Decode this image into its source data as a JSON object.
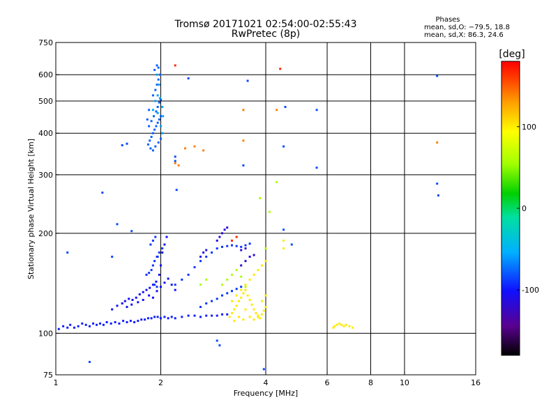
{
  "chart_data": {
    "type": "scatter",
    "title": "Tromsø 20171021 02:54:00-02:55:43",
    "subtitle": "RwPretec (8p)",
    "xlabel": "Frequency [MHz]",
    "ylabel": "Stationary phase Virtual Height [km]",
    "x_scale": "log",
    "y_scale": "log",
    "xlim": [
      1,
      16
    ],
    "ylim": [
      75,
      750
    ],
    "x_ticks": [
      1,
      2,
      4,
      6,
      8,
      10,
      16
    ],
    "y_ticks": [
      75,
      100,
      200,
      300,
      400,
      500,
      600,
      750
    ],
    "x_grid": [
      2,
      4,
      6,
      8,
      10
    ],
    "y_grid": [
      100,
      200,
      300,
      400,
      500,
      600
    ],
    "grid": true,
    "legend": {
      "title": "Phases",
      "lines": [
        "mean, sd,O: −79.5, 18.8",
        "mean, sd,X:  86.3, 24.6"
      ],
      "placement": "top-right"
    },
    "colorbar": {
      "label": "[deg]",
      "range": [
        -180,
        180
      ],
      "ticks": [
        100,
        0,
        -100
      ],
      "colors": [
        "#000000",
        "#5a0090",
        "#1010ff",
        "#00b0ff",
        "#00e0a0",
        "#00d000",
        "#a0ff00",
        "#ffff00",
        "#ffa000",
        "#ff4000",
        "#ff0000"
      ]
    },
    "series": [
      {
        "phase": -105,
        "points": [
          [
            1.02,
            103
          ],
          [
            1.05,
            105
          ],
          [
            1.08,
            104
          ],
          [
            1.1,
            106
          ],
          [
            1.13,
            104
          ],
          [
            1.16,
            105
          ],
          [
            1.19,
            107
          ],
          [
            1.22,
            106
          ],
          [
            1.25,
            105
          ],
          [
            1.28,
            107
          ],
          [
            1.31,
            106
          ],
          [
            1.34,
            107
          ],
          [
            1.37,
            106
          ],
          [
            1.4,
            108
          ],
          [
            1.44,
            107
          ],
          [
            1.48,
            108
          ],
          [
            1.52,
            107
          ],
          [
            1.56,
            109
          ],
          [
            1.6,
            108
          ],
          [
            1.64,
            109
          ],
          [
            1.68,
            108
          ],
          [
            1.72,
            109
          ],
          [
            1.76,
            110
          ],
          [
            1.8,
            110
          ],
          [
            1.84,
            111
          ],
          [
            1.88,
            111
          ],
          [
            1.92,
            112
          ],
          [
            1.96,
            112
          ],
          [
            2.0,
            111
          ],
          [
            2.05,
            112
          ],
          [
            2.1,
            111
          ],
          [
            2.15,
            112
          ],
          [
            2.2,
            111
          ],
          [
            2.3,
            112
          ],
          [
            2.4,
            113
          ],
          [
            2.5,
            113
          ],
          [
            2.6,
            112
          ],
          [
            2.7,
            113
          ],
          [
            2.8,
            113
          ],
          [
            2.9,
            113
          ],
          [
            3.0,
            114
          ],
          [
            3.1,
            114
          ]
        ]
      },
      {
        "phase": -110,
        "points": [
          [
            1.45,
            118
          ],
          [
            1.5,
            121
          ],
          [
            1.55,
            123
          ],
          [
            1.58,
            125
          ],
          [
            1.62,
            127
          ],
          [
            1.66,
            126
          ],
          [
            1.7,
            128
          ],
          [
            1.74,
            131
          ],
          [
            1.78,
            133
          ],
          [
            1.82,
            135
          ],
          [
            1.86,
            137
          ],
          [
            1.9,
            140
          ],
          [
            1.94,
            143
          ],
          [
            1.98,
            150
          ],
          [
            2.0,
            160
          ],
          [
            2.02,
            175
          ],
          [
            2.05,
            185
          ],
          [
            2.08,
            195
          ],
          [
            1.6,
            120
          ],
          [
            1.65,
            122
          ],
          [
            1.72,
            124
          ],
          [
            1.78,
            126
          ],
          [
            1.85,
            130
          ],
          [
            1.9,
            128
          ],
          [
            1.95,
            134
          ],
          [
            2.0,
            138
          ],
          [
            2.05,
            142
          ],
          [
            2.1,
            146
          ],
          [
            2.15,
            140
          ],
          [
            2.2,
            135
          ]
        ]
      },
      {
        "phase": -100,
        "points": [
          [
            1.82,
            150
          ],
          [
            1.85,
            152
          ],
          [
            1.88,
            155
          ],
          [
            1.9,
            160
          ],
          [
            1.92,
            165
          ],
          [
            1.95,
            170
          ],
          [
            1.98,
            175
          ],
          [
            2.02,
            180
          ],
          [
            1.87,
            185
          ],
          [
            1.9,
            190
          ],
          [
            1.93,
            195
          ],
          [
            1.96,
            170
          ],
          [
            1.92,
            140
          ],
          [
            1.95,
            138
          ],
          [
            2.2,
            140
          ],
          [
            2.3,
            145
          ],
          [
            2.4,
            150
          ],
          [
            2.5,
            158
          ],
          [
            2.6,
            165
          ],
          [
            2.7,
            170
          ],
          [
            2.8,
            175
          ],
          [
            2.9,
            180
          ],
          [
            3.0,
            182
          ],
          [
            3.1,
            183
          ],
          [
            3.2,
            184
          ],
          [
            3.3,
            183
          ],
          [
            3.4,
            182
          ],
          [
            3.5,
            184
          ],
          [
            3.6,
            186
          ],
          [
            2.6,
            120
          ],
          [
            2.7,
            123
          ],
          [
            2.8,
            125
          ],
          [
            2.9,
            127
          ],
          [
            3.0,
            130
          ],
          [
            3.1,
            132
          ],
          [
            3.2,
            134
          ],
          [
            3.3,
            136
          ],
          [
            3.4,
            138
          ]
        ]
      },
      {
        "phase": -120,
        "points": [
          [
            2.6,
            170
          ],
          [
            2.65,
            175
          ],
          [
            2.7,
            178
          ],
          [
            2.9,
            190
          ],
          [
            2.95,
            195
          ],
          [
            3.0,
            200
          ],
          [
            3.05,
            205
          ],
          [
            3.1,
            208
          ],
          [
            3.4,
            160
          ],
          [
            3.5,
            165
          ],
          [
            3.6,
            170
          ],
          [
            3.7,
            172
          ],
          [
            3.4,
            178
          ],
          [
            3.5,
            180
          ]
        ]
      },
      {
        "phase": -90,
        "points": [
          [
            1.84,
            370
          ],
          [
            1.86,
            380
          ],
          [
            1.88,
            390
          ],
          [
            1.9,
            400
          ],
          [
            1.92,
            410
          ],
          [
            1.94,
            420
          ],
          [
            1.96,
            430
          ],
          [
            1.98,
            440
          ],
          [
            2.0,
            450
          ],
          [
            1.87,
            360
          ],
          [
            1.9,
            355
          ],
          [
            1.93,
            365
          ],
          [
            1.97,
            375
          ],
          [
            2.0,
            385
          ],
          [
            1.85,
            420
          ],
          [
            1.88,
            435
          ],
          [
            1.91,
            450
          ],
          [
            1.94,
            465
          ],
          [
            1.96,
            480
          ],
          [
            1.98,
            495
          ],
          [
            2.0,
            505
          ],
          [
            1.9,
            520
          ],
          [
            1.93,
            540
          ],
          [
            1.95,
            560
          ],
          [
            1.97,
            580
          ],
          [
            1.99,
            600
          ],
          [
            1.92,
            620
          ],
          [
            1.95,
            640
          ],
          [
            1.97,
            630
          ],
          [
            1.85,
            470
          ],
          [
            1.83,
            440
          ]
        ]
      },
      {
        "phase": -75,
        "points": [
          [
            1.93,
            500
          ],
          [
            1.96,
            520
          ],
          [
            1.99,
            510
          ],
          [
            2.02,
            480
          ],
          [
            2.03,
            450
          ],
          [
            1.98,
            560
          ],
          [
            1.95,
            600
          ],
          [
            2.0,
            420
          ],
          [
            2.02,
            400
          ],
          [
            1.96,
            460
          ],
          [
            1.9,
            470
          ]
        ]
      },
      {
        "phase": -95,
        "points": [
          [
            1.08,
            175
          ],
          [
            1.36,
            265
          ],
          [
            1.5,
            213
          ],
          [
            1.65,
            203
          ],
          [
            1.45,
            170
          ],
          [
            1.55,
            368
          ],
          [
            1.6,
            372
          ],
          [
            1.25,
            82
          ],
          [
            2.2,
            330
          ],
          [
            2.2,
            340
          ],
          [
            2.22,
            270
          ],
          [
            2.4,
            585
          ],
          [
            3.55,
            575
          ],
          [
            4.55,
            480
          ],
          [
            5.6,
            470
          ],
          [
            5.6,
            315
          ],
          [
            3.45,
            320
          ],
          [
            4.5,
            365
          ],
          [
            12.4,
            595
          ],
          [
            12.4,
            282
          ],
          [
            12.5,
            260
          ],
          [
            2.9,
            95
          ],
          [
            2.95,
            92
          ],
          [
            3.95,
            78
          ],
          [
            4.75,
            185
          ],
          [
            4.5,
            205
          ]
        ]
      },
      {
        "phase": 80,
        "points": [
          [
            3.15,
            112
          ],
          [
            3.2,
            115
          ],
          [
            3.25,
            118
          ],
          [
            3.3,
            121
          ],
          [
            3.35,
            125
          ],
          [
            3.4,
            128
          ],
          [
            3.45,
            132
          ],
          [
            3.5,
            135
          ],
          [
            3.55,
            130
          ],
          [
            3.6,
            126
          ],
          [
            3.65,
            122
          ],
          [
            3.7,
            118
          ],
          [
            3.75,
            115
          ],
          [
            3.8,
            113
          ],
          [
            3.85,
            111
          ],
          [
            3.9,
            114
          ],
          [
            3.95,
            117
          ],
          [
            4.0,
            120
          ],
          [
            3.2,
            125
          ],
          [
            3.3,
            130
          ],
          [
            3.4,
            135
          ],
          [
            3.5,
            140
          ],
          [
            3.6,
            145
          ],
          [
            3.7,
            150
          ],
          [
            3.8,
            155
          ],
          [
            3.9,
            160
          ],
          [
            4.0,
            165
          ],
          [
            3.6,
            112
          ],
          [
            3.7,
            110
          ],
          [
            3.8,
            112
          ],
          [
            3.9,
            125
          ],
          [
            4.0,
            130
          ],
          [
            3.5,
            118
          ],
          [
            3.45,
            110
          ],
          [
            3.35,
            112
          ],
          [
            3.25,
            109
          ],
          [
            6.3,
            105
          ],
          [
            6.4,
            106
          ],
          [
            6.5,
            107
          ],
          [
            6.6,
            106
          ],
          [
            6.7,
            105
          ],
          [
            6.8,
            106
          ],
          [
            6.95,
            105
          ],
          [
            7.1,
            104
          ],
          [
            6.25,
            104
          ],
          [
            4.5,
            190
          ],
          [
            4.5,
            180
          ]
        ]
      },
      {
        "phase": 40,
        "points": [
          [
            3.0,
            140
          ],
          [
            3.1,
            145
          ],
          [
            3.2,
            150
          ],
          [
            3.3,
            155
          ],
          [
            3.4,
            148
          ],
          [
            3.5,
            138
          ],
          [
            4.0,
            180
          ],
          [
            4.1,
            232
          ],
          [
            3.85,
            255
          ],
          [
            4.3,
            285
          ],
          [
            2.6,
            140
          ],
          [
            2.7,
            145
          ]
        ]
      },
      {
        "phase": 120,
        "points": [
          [
            2.25,
            320
          ],
          [
            2.2,
            325
          ],
          [
            2.35,
            360
          ],
          [
            2.5,
            365
          ],
          [
            2.65,
            355
          ],
          [
            3.45,
            470
          ],
          [
            4.3,
            470
          ],
          [
            3.45,
            380
          ],
          [
            12.4,
            375
          ]
        ]
      },
      {
        "phase": 160,
        "points": [
          [
            2.2,
            640
          ],
          [
            4.4,
            625
          ],
          [
            3.3,
            195
          ],
          [
            3.2,
            190
          ]
        ]
      }
    ]
  }
}
